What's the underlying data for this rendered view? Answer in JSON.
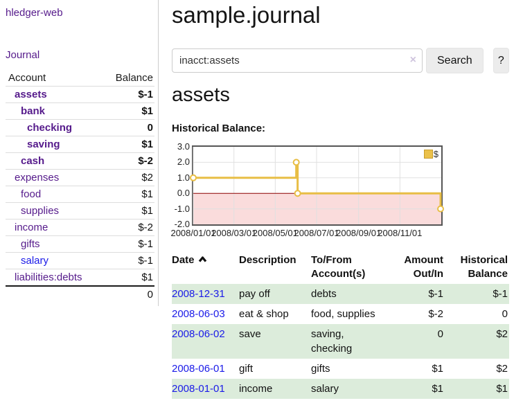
{
  "sidebar": {
    "app_title": "hledger-web",
    "journal_label": "Journal",
    "accounts_header": {
      "account": "Account",
      "balance": "Balance"
    },
    "accounts": [
      {
        "name": "assets",
        "level": 1,
        "balance": "$-1",
        "bold": true,
        "balance_style": "neg-strong"
      },
      {
        "name": "bank",
        "level": 2,
        "balance": "$1",
        "bold": true,
        "balance_style": "pos"
      },
      {
        "name": "checking",
        "level": 3,
        "balance": "0",
        "bold": true,
        "balance_style": "pos"
      },
      {
        "name": "saving",
        "level": 3,
        "balance": "$1",
        "bold": true,
        "balance_style": "pos"
      },
      {
        "name": "cash",
        "level": 2,
        "balance": "$-2",
        "bold": true,
        "balance_style": "neg-strong"
      },
      {
        "name": "expenses",
        "level": 1,
        "balance": "$2",
        "bold": false,
        "balance_style": "pos"
      },
      {
        "name": "food",
        "level": 2,
        "balance": "$1",
        "bold": false,
        "balance_style": "pos"
      },
      {
        "name": "supplies",
        "level": 2,
        "balance": "$1",
        "bold": false,
        "balance_style": "pos"
      },
      {
        "name": "income",
        "level": 1,
        "balance": "$-2",
        "bold": false,
        "balance_style": "neg-soft"
      },
      {
        "name": "gifts",
        "level": 2,
        "balance": "$-1",
        "bold": false,
        "balance_style": "neg-soft"
      },
      {
        "name": "salary",
        "level": 2,
        "balance": "$-1",
        "bold": false,
        "balance_style": "neg-soft",
        "link_style": "unvisited"
      },
      {
        "name": "liabilities:debts",
        "level": 1,
        "balance": "$1",
        "bold": false,
        "balance_style": "pos"
      }
    ],
    "total": "0"
  },
  "main": {
    "title": "sample.journal",
    "search": {
      "value": "inacct:assets",
      "clear_icon": "×",
      "button": "Search",
      "help": "?"
    },
    "account_heading": "assets",
    "chart_label": "Historical Balance:"
  },
  "chart_data": {
    "type": "line",
    "style": "step",
    "title": "Historical Balance",
    "series": [
      {
        "name": "$",
        "points": [
          {
            "date": "2008-01-01",
            "value": 1
          },
          {
            "date": "2008-06-01",
            "value": 2
          },
          {
            "date": "2008-06-03",
            "value": 0
          },
          {
            "date": "2008-12-31",
            "value": -1
          }
        ]
      }
    ],
    "x_range": [
      "2008-01-01",
      "2009-01-01"
    ],
    "x_tick_labels": [
      "2008/01/01",
      "2008/03/01",
      "2008/05/01",
      "2008/07/01",
      "2008/09/01",
      "2008/11/01"
    ],
    "x_tick_dates": [
      "2008-01-01",
      "2008-03-01",
      "2008-05-01",
      "2008-07-01",
      "2008-09-01",
      "2008-11-01"
    ],
    "y_ticks": [
      3.0,
      2.0,
      1.0,
      0.0,
      -1.0,
      -2.0
    ],
    "ylim": [
      -2,
      3
    ],
    "legend": {
      "label": "$",
      "position": "top-right"
    },
    "grid": true,
    "negative_region_shaded": true
  },
  "register": {
    "headers": [
      "Date",
      "Description",
      "To/From Account(s)",
      "Amount Out/In",
      "Historical Balance"
    ],
    "sort_icon": "chevron-up",
    "rows": [
      {
        "date": "2008-12-31",
        "description": "pay off",
        "accounts": "debts",
        "amount": "$-1",
        "balance": "$-1",
        "amount_neg": true,
        "balance_neg": true,
        "shaded": true
      },
      {
        "date": "2008-06-03",
        "description": "eat & shop",
        "accounts": "food, supplies",
        "amount": "$-2",
        "balance": "0",
        "amount_neg": true,
        "balance_neg": false,
        "shaded": false
      },
      {
        "date": "2008-06-02",
        "description": "save",
        "accounts": "saving, checking",
        "amount": "0",
        "balance": "$2",
        "amount_neg": false,
        "balance_neg": false,
        "shaded": true
      },
      {
        "date": "2008-06-01",
        "description": "gift",
        "accounts": "gifts",
        "amount": "$1",
        "balance": "$2",
        "amount_neg": false,
        "balance_neg": false,
        "shaded": false
      },
      {
        "date": "2008-01-01",
        "description": "income",
        "accounts": "salary",
        "amount": "$1",
        "balance": "$1",
        "amount_neg": false,
        "balance_neg": false,
        "shaded": true
      }
    ]
  },
  "colors": {
    "link_purple": "#551a8b",
    "link_blue": "#1a1ae8",
    "negative_strong": "#8b1a1a",
    "negative_soft": "#b97b7b",
    "row_shade_green": "#dcecdb",
    "chart_line_gold": "#e8be45",
    "legend_fill": "#ebc14a",
    "negative_area_pink": "#fadcdc",
    "zero_line_red": "#8b0000",
    "gridline": "#e0e0e0",
    "chart_border": "#555555"
  }
}
